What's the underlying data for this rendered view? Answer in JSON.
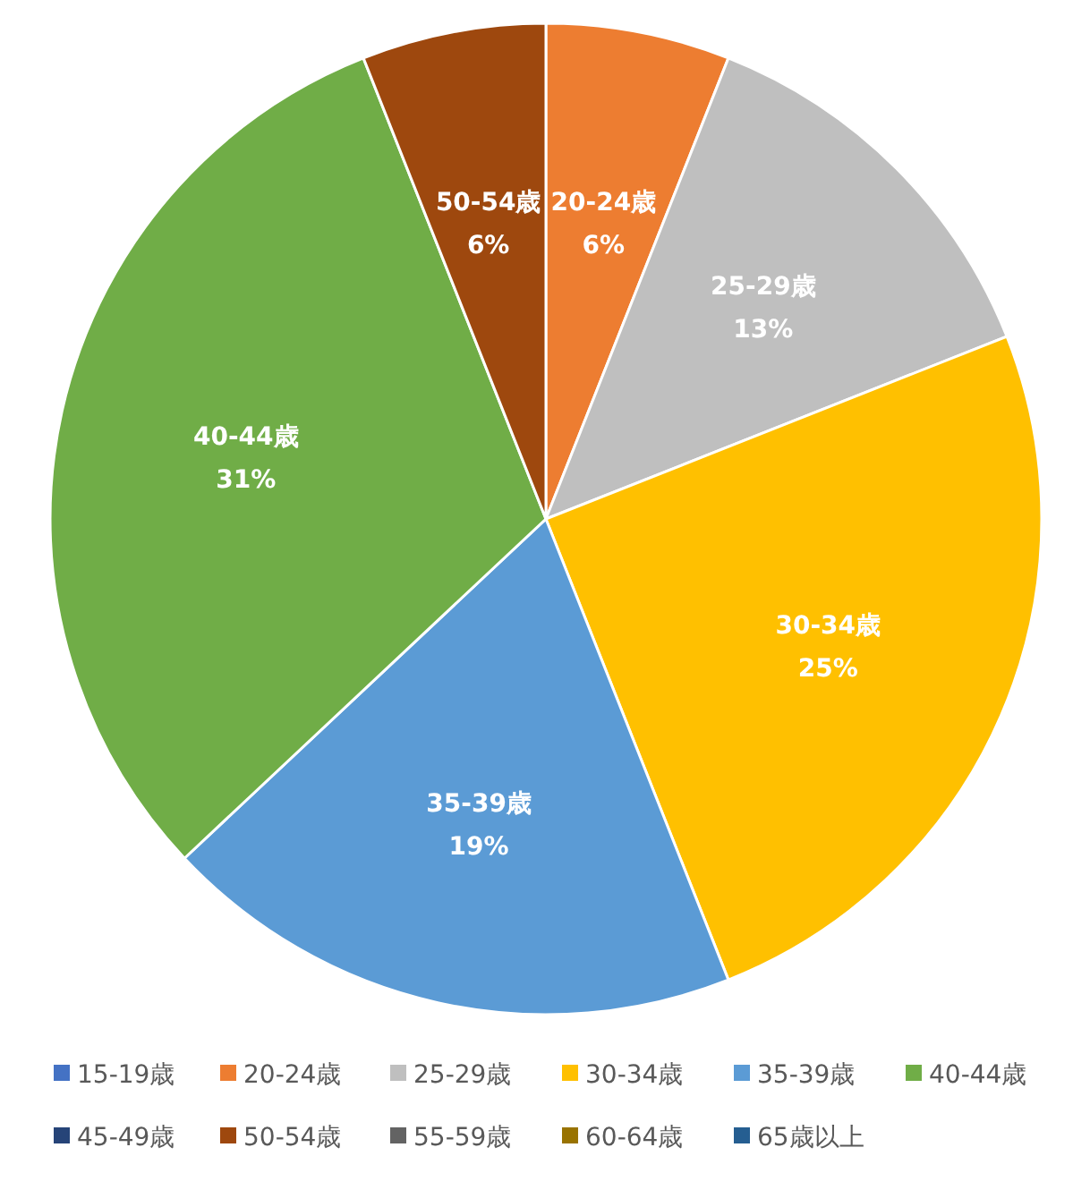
{
  "chart_data": {
    "type": "pie",
    "categories": [
      "15-19歳",
      "20-24歳",
      "25-29歳",
      "30-34歳",
      "35-39歳",
      "40-44歳",
      "45-49歳",
      "50-54歳",
      "55-59歳",
      "60-64歳",
      "65歳以上"
    ],
    "values": [
      0,
      6,
      13,
      25,
      19,
      31,
      0,
      6,
      0,
      0,
      0
    ],
    "colors": [
      "#4472c4",
      "#ed7d31",
      "#bfbfbf",
      "#ffc000",
      "#5b9bd5",
      "#70ad47",
      "#264478",
      "#9e480e",
      "#636363",
      "#997300",
      "#255e91"
    ],
    "value_labels": [
      null,
      "6%",
      "13%",
      "25%",
      "19%",
      "31%",
      null,
      "6%",
      null,
      null,
      null
    ],
    "legend": "bottom"
  }
}
